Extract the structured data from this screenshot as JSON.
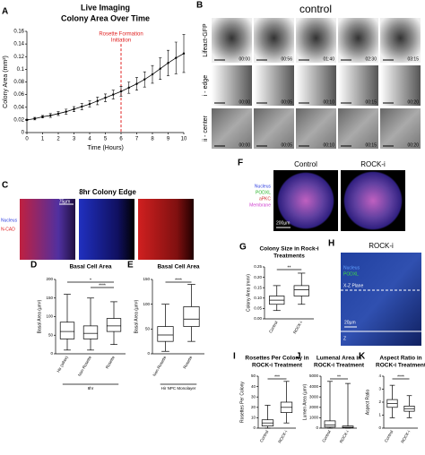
{
  "chart_data": [
    {
      "type": "line",
      "panel": "A",
      "title": "Live Imaging",
      "subtitle": "Colony Area Over Time",
      "xlabel": "Time (Hours)",
      "ylabel": "Colony Area (mm²)",
      "x": [
        0,
        0.5,
        1,
        1.5,
        2,
        2.5,
        3,
        3.5,
        4,
        4.5,
        5,
        5.5,
        6,
        6.5,
        7,
        7.5,
        8,
        8.5,
        9,
        9.5,
        10
      ],
      "values": [
        0.02,
        0.022,
        0.025,
        0.027,
        0.03,
        0.033,
        0.037,
        0.041,
        0.045,
        0.05,
        0.055,
        0.06,
        0.065,
        0.071,
        0.077,
        0.084,
        0.092,
        0.101,
        0.11,
        0.118,
        0.125
      ],
      "errors": [
        0.001,
        0.002,
        0.002,
        0.003,
        0.003,
        0.004,
        0.004,
        0.005,
        0.005,
        0.006,
        0.006,
        0.007,
        0.008,
        0.009,
        0.01,
        0.012,
        0.014,
        0.017,
        0.02,
        0.025,
        0.03
      ],
      "color": "#000000",
      "xlim": [
        0,
        10
      ],
      "ylim": [
        0,
        0.16
      ],
      "xticks": [
        0,
        1,
        2,
        3,
        4,
        5,
        6,
        7,
        8,
        9,
        10
      ],
      "yticks": [
        0,
        0.02,
        0.04,
        0.06,
        0.08,
        0.1,
        0.12,
        0.14,
        0.16
      ],
      "annotation": [
        "Rosette Formation",
        "Initiation"
      ],
      "annotation_x": 6,
      "annotation_color": "#e02020"
    },
    {
      "type": "box",
      "panel": "D",
      "title": "Basal Cell Area",
      "ylabel": "Basal Area (µm²)",
      "categories": [
        "Hir (other)",
        "Non-Rosette",
        "Rosette"
      ],
      "group": "8hr",
      "boxes": [
        [
          10,
          40,
          60,
          85,
          160
        ],
        [
          10,
          40,
          55,
          75,
          150
        ],
        [
          25,
          60,
          75,
          95,
          140
        ]
      ],
      "ylim": [
        0,
        200
      ],
      "yticks": [
        0,
        50,
        100,
        150,
        200
      ],
      "significance": [
        "*",
        "****"
      ]
    },
    {
      "type": "box",
      "panel": "E",
      "title": "Basal Cell Area",
      "ylabel": "Basal Area (µm²)",
      "categories": [
        "Non-Rosette",
        "Rosette"
      ],
      "group": "Hir NPC Monolayer",
      "boxes": [
        [
          5,
          25,
          38,
          55,
          100
        ],
        [
          25,
          55,
          70,
          95,
          140
        ]
      ],
      "ylim": [
        0,
        150
      ],
      "yticks": [
        0,
        50,
        100,
        150
      ],
      "significance": [
        "****"
      ]
    },
    {
      "type": "box",
      "panel": "G",
      "title": "Colony Size in Rock-i",
      "subtitle": "Treatments",
      "ylabel": "Colony Area (mm²)",
      "categories": [
        "Control",
        "ROCK-i"
      ],
      "boxes": [
        [
          0.04,
          0.07,
          0.09,
          0.11,
          0.16
        ],
        [
          0.07,
          0.11,
          0.14,
          0.16,
          0.22
        ]
      ],
      "ylim": [
        0,
        0.25
      ],
      "yticks": [
        {
          "value": 0,
          "label": "0.00"
        },
        {
          "value": 0.05,
          "label": "0.05"
        },
        {
          "value": 0.1,
          "label": "0.10"
        },
        {
          "value": 0.15,
          "label": "0.15"
        },
        {
          "value": 0.2,
          "label": "0.20"
        },
        {
          "value": 0.25,
          "label": "0.25"
        }
      ],
      "significance": [
        "**"
      ]
    },
    {
      "type": "box",
      "panel": "I",
      "title": "Rosettes Per Colony in",
      "subtitle": "ROCK-i Treatment",
      "ylabel": "Rosettes Per Colony",
      "categories": [
        "Control",
        "ROCK-i"
      ],
      "boxes": [
        [
          0,
          2,
          5,
          8,
          22
        ],
        [
          5,
          15,
          20,
          25,
          45
        ]
      ],
      "ylim": [
        0,
        50
      ],
      "yticks": [
        0,
        10,
        20,
        30,
        40,
        50
      ],
      "significance": [
        "***"
      ]
    },
    {
      "type": "box",
      "panel": "J",
      "title": "Lumenal Area in",
      "subtitle": "ROCK-i Treatment",
      "ylabel": "Lumen Area (µm²)",
      "categories": [
        "Control",
        "ROCK-i"
      ],
      "boxes": [
        [
          0,
          100,
          300,
          700,
          4500
        ],
        [
          0,
          30,
          80,
          200,
          4300
        ]
      ],
      "ylim": [
        0,
        5000
      ],
      "yticks": [
        0,
        1000,
        2000,
        3000,
        4000,
        5000
      ],
      "significance": [
        "**"
      ]
    },
    {
      "type": "box",
      "panel": "K",
      "title": "Aspect Ratio in",
      "subtitle": "ROCK-i Treatment",
      "ylabel": "Aspect Ratio",
      "categories": [
        "Control",
        "ROCK-i"
      ],
      "boxes": [
        [
          0.8,
          1.6,
          1.9,
          2.2,
          3.3
        ],
        [
          0.8,
          1.3,
          1.5,
          1.7,
          2.5
        ]
      ],
      "ylim": [
        0,
        4
      ],
      "yticks": [
        0,
        1,
        2,
        3,
        4
      ],
      "significance": [
        "****"
      ]
    }
  ],
  "figure": {
    "B": {
      "panel": "B",
      "title": "control",
      "rows": [
        {
          "label": "Lifeact-GFP",
          "times": [
            "00:00",
            "00:56",
            "01:40",
            "02:30",
            "03:15"
          ]
        },
        {
          "label": "i - edge",
          "times": [
            "00:00",
            "00:05",
            "00:10",
            "00:15",
            "00:20"
          ]
        },
        {
          "label": "ii - center",
          "times": [
            "00:00",
            "00:05",
            "00:10",
            "00:15",
            "00:20"
          ]
        }
      ]
    },
    "C": {
      "panel": "C",
      "title": "8hr Colony Edge",
      "scale": "75µm",
      "labels": [
        "Nucleus",
        "N-CAD"
      ]
    },
    "F": {
      "panel": "F",
      "titles": [
        "Control",
        "ROCK-i"
      ],
      "labels": [
        "Nucleus",
        "PODXL",
        "aPKC",
        "Membrane"
      ],
      "scale": "200µm"
    },
    "H": {
      "panel": "H",
      "title": "ROCK-i",
      "labels": [
        "Nucleus",
        "PODXL"
      ],
      "plane": "X-Z Plane",
      "scale": "20µm",
      "z": "Z"
    }
  }
}
